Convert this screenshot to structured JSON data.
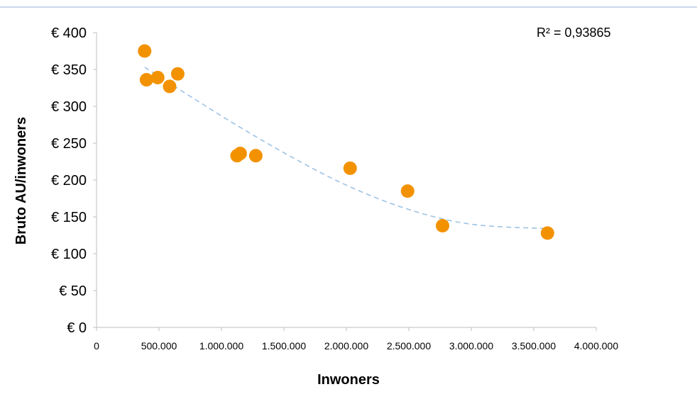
{
  "chart_data": {
    "type": "scatter",
    "xlabel": "Inwoners",
    "ylabel": "Bruto AU/inwoners",
    "xlim": [
      0,
      4000000
    ],
    "ylim": [
      0,
      400
    ],
    "x_ticks": [
      "0",
      "500.000",
      "1.000.000",
      "1.500.000",
      "2.000.000",
      "2.500.000",
      "3.000.000",
      "3.500.000",
      "4.000.000"
    ],
    "y_ticks": [
      "€ 0",
      "€ 50",
      "€ 100",
      "€ 150",
      "€ 200",
      "€ 250",
      "€ 300",
      "€ 350",
      "€ 400"
    ],
    "series": [
      {
        "color": "#f39200",
        "points": [
          {
            "x": 385000,
            "y": 375
          },
          {
            "x": 400000,
            "y": 336
          },
          {
            "x": 490000,
            "y": 339
          },
          {
            "x": 585000,
            "y": 327
          },
          {
            "x": 650000,
            "y": 344
          },
          {
            "x": 1125000,
            "y": 233
          },
          {
            "x": 1150000,
            "y": 236
          },
          {
            "x": 1275000,
            "y": 233
          },
          {
            "x": 2030000,
            "y": 216
          },
          {
            "x": 2490000,
            "y": 185
          },
          {
            "x": 2770000,
            "y": 138
          },
          {
            "x": 3610000,
            "y": 128
          }
        ]
      }
    ],
    "trendline": {
      "type": "polynomial",
      "color": "#9dc3e6",
      "dashed": true,
      "x_range": [
        385000,
        3610000
      ],
      "points": [
        {
          "x": 385000,
          "y": 353
        },
        {
          "x": 1000000,
          "y": 287
        },
        {
          "x": 1500000,
          "y": 237
        },
        {
          "x": 2000000,
          "y": 193
        },
        {
          "x": 2500000,
          "y": 160
        },
        {
          "x": 3000000,
          "y": 140
        },
        {
          "x": 3610000,
          "y": 134
        }
      ]
    },
    "annotation": "R² = 0,93865",
    "grid": false,
    "legend": "none",
    "top_rule_color": "#95b3d7"
  }
}
